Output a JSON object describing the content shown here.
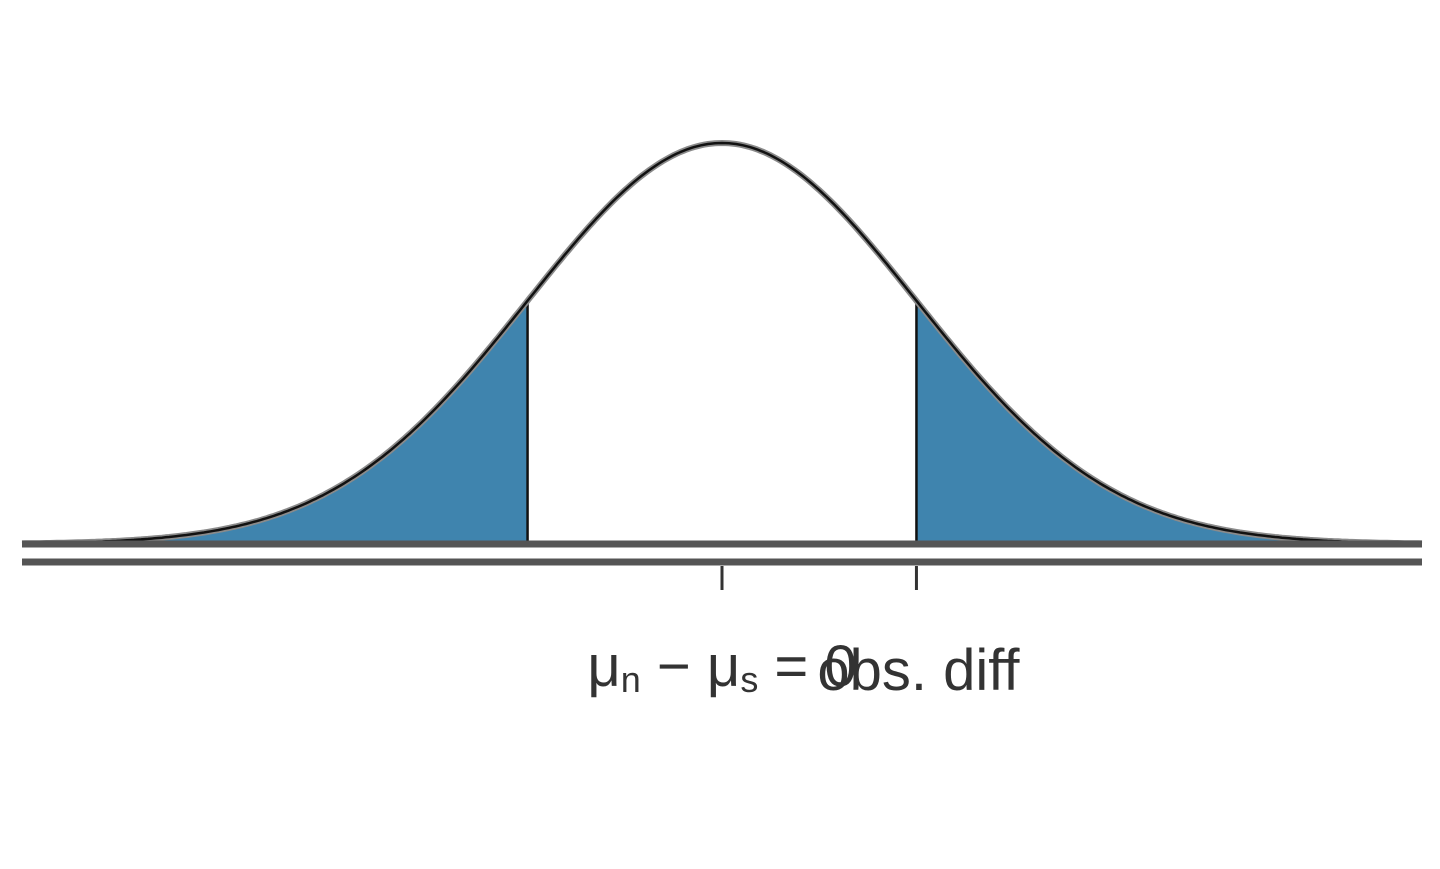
{
  "chart_data": {
    "type": "area",
    "distribution": "normal",
    "x": [
      -3.6,
      -3.4,
      -3.2,
      -3.0,
      -2.8,
      -2.6,
      -2.4,
      -2.2,
      -2.0,
      -1.8,
      -1.6,
      -1.4,
      -1.2,
      -1.0,
      -0.8,
      -0.6,
      -0.4,
      -0.2,
      0.0,
      0.2,
      0.4,
      0.6,
      0.8,
      1.0,
      1.2,
      1.4,
      1.6,
      1.8,
      2.0,
      2.2,
      2.4,
      2.6,
      2.8,
      3.0,
      3.2,
      3.4,
      3.6
    ],
    "y": [
      0.0006,
      0.0012,
      0.0024,
      0.0044,
      0.0079,
      0.0136,
      0.0224,
      0.0355,
      0.054,
      0.079,
      0.1109,
      0.1497,
      0.1942,
      0.242,
      0.2897,
      0.3332,
      0.3683,
      0.391,
      0.3989,
      0.391,
      0.3683,
      0.3332,
      0.2897,
      0.242,
      0.1942,
      0.1497,
      0.1109,
      0.079,
      0.054,
      0.0355,
      0.0224,
      0.0136,
      0.0079,
      0.0044,
      0.0024,
      0.0012,
      0.0006
    ],
    "xlim": [
      -3.6,
      3.6
    ],
    "ylim": [
      0,
      0.4
    ],
    "shaded_tails": {
      "lower_below": -1.0,
      "upper_above": 1.0
    },
    "ticks": [
      {
        "x": 0,
        "label": "μn − μs = 0"
      },
      {
        "x": 1.0,
        "label": "obs. diff"
      }
    ],
    "title": "",
    "xlabel": "",
    "ylabel": "",
    "grid": false,
    "colors": {
      "tail_fill": "#3f84ae",
      "curve": "#111111",
      "axis": "#555555",
      "label": "#333333"
    }
  }
}
